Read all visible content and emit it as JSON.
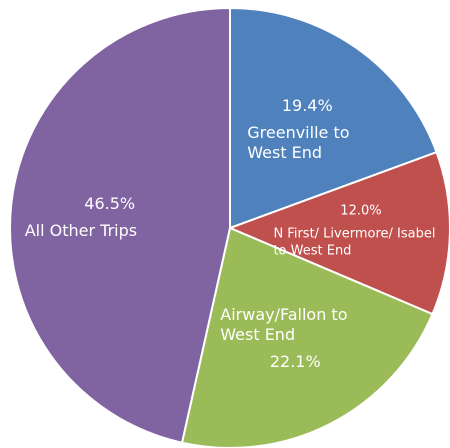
{
  "chart_data": {
    "type": "pie",
    "categories": [
      "Greenville to West End",
      "N First/ Livermore/ Isabel to West End",
      "Airway/Fallon to West End",
      "All Other Trips"
    ],
    "values": [
      19.4,
      12.0,
      22.1,
      46.5
    ],
    "value_labels": [
      "19.4%",
      "12.0%",
      "22.1%",
      "46.5%"
    ],
    "colors": [
      "#4f81bd",
      "#c0504d",
      "#9bbb59",
      "#8064a2"
    ]
  }
}
